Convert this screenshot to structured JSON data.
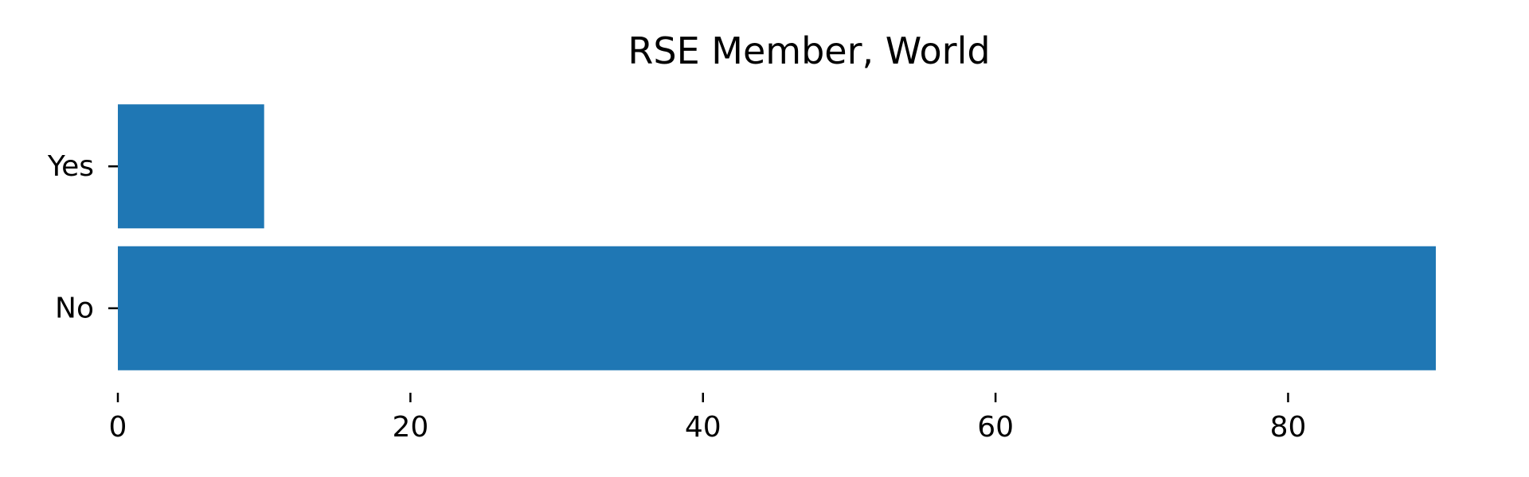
{
  "chart_data": {
    "type": "bar",
    "orientation": "horizontal",
    "title": "RSE Member, World",
    "categories": [
      "No",
      "Yes"
    ],
    "values": [
      90.1,
      10.0
    ],
    "xlim": [
      0,
      90.1
    ],
    "x_ticks": [
      0,
      20,
      40,
      60,
      80
    ],
    "xlabel": "",
    "ylabel": "",
    "grid": false,
    "legend": "none",
    "bar_color": "#1f77b4",
    "spines": "hidden"
  }
}
